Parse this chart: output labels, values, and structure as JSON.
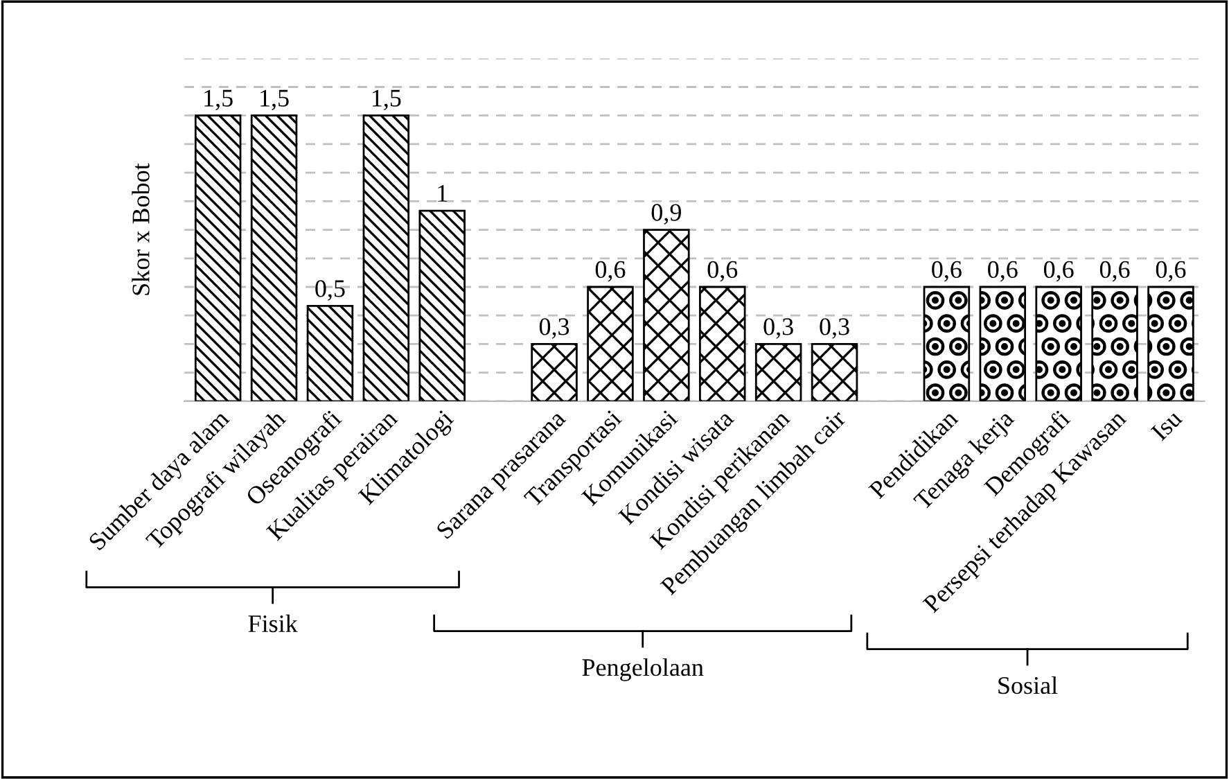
{
  "chart_data": {
    "type": "bar",
    "ylabel": "Skor x Bobot",
    "categories": [
      "Sumber daya alam",
      "Topografi wilayah",
      "Oseanografi",
      "Kualitas perairan",
      "Klimatologi",
      null,
      "Sarana prasarana",
      "Transportasi",
      "Komunikasi",
      "Kondisi wisata",
      "Kondisi perikanan",
      "Pembuangan limbah cair",
      null,
      "Pendidikan",
      "Tenaga kerja",
      "Demografi",
      "Persepsi terhadap Kawasan",
      "Isu"
    ],
    "series": [
      {
        "color": "#000000",
        "values": [
          1.5,
          1.5,
          0.5,
          1.5,
          1,
          null,
          null,
          null,
          null,
          null,
          null,
          null,
          null,
          null,
          null,
          null,
          null,
          null
        ],
        "value_labels": [
          "1,5",
          "1,5",
          "0,5",
          "1,5",
          "1",
          null,
          null,
          null,
          null,
          null,
          null,
          null,
          null,
          null,
          null,
          null,
          null,
          null
        ]
      },
      {
        "color": "#000000",
        "values": [
          null,
          null,
          null,
          null,
          null,
          null,
          0.3,
          0.6,
          0.9,
          0.6,
          0.3,
          0.3,
          null,
          null,
          null,
          null,
          null,
          null
        ],
        "value_labels": [
          null,
          null,
          null,
          null,
          null,
          null,
          "0,3",
          "0,6",
          "0,9",
          "0,6",
          "0,3",
          "0,3",
          null,
          null,
          null,
          null,
          null,
          null
        ]
      },
      {
        "color": "#000000",
        "values": [
          null,
          null,
          null,
          null,
          null,
          null,
          null,
          null,
          null,
          null,
          null,
          null,
          null,
          0.6,
          0.6,
          0.6,
          0.6,
          0.6
        ],
        "value_labels": [
          null,
          null,
          null,
          null,
          null,
          null,
          null,
          null,
          null,
          null,
          null,
          null,
          null,
          "0,6",
          "0,6",
          "0,6",
          "0,6",
          "0,6"
        ]
      }
    ],
    "ylim": [
      0,
      1.8
    ],
    "yticks": [
      {
        "value": 0,
        "label": null
      },
      {
        "value": 0.15,
        "label": null
      },
      {
        "value": 0.3,
        "label": null
      },
      {
        "value": 0.45,
        "label": null
      },
      {
        "value": 0.6,
        "label": null
      },
      {
        "value": 0.75,
        "label": null
      },
      {
        "value": 0.9,
        "label": null
      },
      {
        "value": 1.05,
        "label": null
      },
      {
        "value": 1.2,
        "label": null
      },
      {
        "value": 1.35,
        "label": null
      },
      {
        "value": 1.5,
        "label": null
      },
      {
        "value": 1.65,
        "label": null
      },
      {
        "value": 1.8,
        "label": null
      }
    ],
    "grid": "y",
    "annotations": [
      "Fisik",
      "Pengelolaan",
      "Sosial"
    ]
  }
}
